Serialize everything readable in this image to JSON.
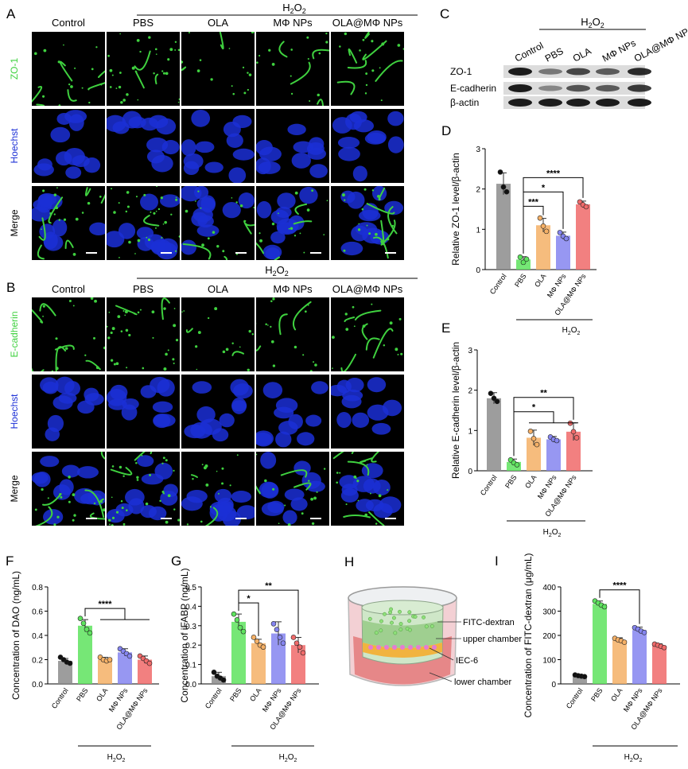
{
  "group_bracket": "H2O2",
  "colors": {
    "Control": "#8c8c8c",
    "PBS": "#5ee35e",
    "OLA": "#f5b066",
    "MΦ NPs": "#8585f0",
    "OLA@MΦ NPs": "#f06a6a",
    "membrane": "#3fd13f",
    "nuclei": "#1b2fd6"
  },
  "panels": {
    "A": {
      "letter": "A",
      "columns": [
        "Control",
        "PBS",
        "OLA",
        "MΦ NPs",
        "OLA@MΦ NPs"
      ],
      "rows": [
        "ZO-1",
        "Hoechst",
        "Merge"
      ]
    },
    "B": {
      "letter": "B",
      "columns": [
        "Control",
        "PBS",
        "OLA",
        "MΦ NPs",
        "OLA@MΦ NPs"
      ],
      "rows": [
        "E-cadherin",
        "Hoechst",
        "Merge"
      ]
    },
    "C": {
      "letter": "C",
      "lanes": [
        "Control",
        "PBS",
        "OLA",
        "MΦ NPs",
        "OLA@MΦ NPs"
      ],
      "bands": [
        "ZO-1",
        "E-cadherin",
        "β-actin"
      ]
    },
    "H": {
      "letter": "H",
      "labels": [
        "FITC-dextran",
        "upper chamber",
        "IEC-6",
        "lower chamber"
      ]
    }
  },
  "chart_data": [
    {
      "id": "D",
      "letter": "D",
      "type": "bar",
      "categories": [
        "Control",
        "PBS",
        "OLA",
        "MΦ NPs",
        "OLA@MΦ NPs"
      ],
      "values": [
        2.13,
        0.25,
        1.1,
        0.84,
        1.62
      ],
      "sd": [
        0.27,
        0.07,
        0.17,
        0.09,
        0.08
      ],
      "points": [
        [
          2.42,
          2.05,
          1.93
        ],
        [
          0.31,
          0.18,
          0.26
        ],
        [
          1.28,
          1.08,
          0.95
        ],
        [
          0.92,
          0.83,
          0.77
        ],
        [
          1.68,
          1.61,
          1.56
        ]
      ],
      "ylabel": "Relative ZO-1 level/β-actin",
      "ylim": [
        0,
        3
      ],
      "yticks": [
        0,
        1,
        2,
        3
      ],
      "group_label": "H2O2",
      "sig": [
        {
          "label": "****",
          "from": 1,
          "to": 4
        },
        {
          "label": "*",
          "from": 1,
          "to": 3
        },
        {
          "label": "***",
          "from": 1,
          "to": 2
        }
      ]
    },
    {
      "id": "E",
      "letter": "E",
      "type": "bar",
      "categories": [
        "Control",
        "PBS",
        "OLA",
        "MΦ NPs",
        "OLA@MΦ NPs"
      ],
      "values": [
        1.8,
        0.22,
        0.82,
        0.78,
        0.97
      ],
      "sd": [
        0.14,
        0.07,
        0.19,
        0.07,
        0.22
      ],
      "points": [
        [
          1.92,
          1.8,
          1.72
        ],
        [
          0.27,
          0.2,
          0.15
        ],
        [
          0.98,
          0.8,
          0.65
        ],
        [
          0.84,
          0.78,
          0.75
        ],
        [
          1.18,
          0.97,
          0.82
        ]
      ],
      "ylabel": "Relative E-cadherin level/β-actin",
      "ylim": [
        0,
        3
      ],
      "yticks": [
        0,
        1,
        2,
        3
      ],
      "group_label": "H2O2",
      "sig": [
        {
          "label": "**",
          "from": 1,
          "to": 4
        },
        {
          "label": "*",
          "from": 1,
          "to": [
            2,
            4
          ]
        }
      ]
    },
    {
      "id": "F",
      "letter": "F",
      "type": "bar",
      "categories": [
        "Control",
        "PBS",
        "OLA",
        "MΦ NPs",
        "OLA@MΦ NPs"
      ],
      "values": [
        0.19,
        0.48,
        0.2,
        0.26,
        0.2
      ],
      "sd": [
        0.02,
        0.05,
        0.02,
        0.03,
        0.03
      ],
      "points": [
        [
          0.22,
          0.2,
          0.18,
          0.17
        ],
        [
          0.54,
          0.5,
          0.45,
          0.42
        ],
        [
          0.22,
          0.2,
          0.19,
          0.2
        ],
        [
          0.29,
          0.27,
          0.25,
          0.23
        ],
        [
          0.23,
          0.21,
          0.19,
          0.17
        ]
      ],
      "ylabel": "Concentration of DAO  (ng/mL)",
      "ylim": [
        0,
        0.8
      ],
      "yticks": [
        0.0,
        0.2,
        0.4,
        0.6,
        0.8
      ],
      "group_label": "H2O2",
      "sig": [
        {
          "label": "****",
          "from": 1,
          "to": [
            2,
            4
          ]
        }
      ]
    },
    {
      "id": "G",
      "letter": "G",
      "type": "bar",
      "categories": [
        "Control",
        "PBS",
        "OLA",
        "MΦ NPs",
        "OLA@MΦ NPs"
      ],
      "values": [
        0.04,
        0.32,
        0.21,
        0.26,
        0.2
      ],
      "sd": [
        0.02,
        0.04,
        0.02,
        0.06,
        0.04
      ],
      "points": [
        [
          0.06,
          0.04,
          0.03,
          0.02
        ],
        [
          0.36,
          0.33,
          0.29,
          0.27
        ],
        [
          0.24,
          0.22,
          0.2,
          0.19
        ],
        [
          0.31,
          0.28,
          0.24,
          0.21
        ],
        [
          0.24,
          0.21,
          0.19,
          0.16
        ]
      ],
      "ylabel": "Concentration of iFABP  (ng/mL)",
      "ylim": [
        0,
        0.5
      ],
      "yticks": [
        0.0,
        0.1,
        0.2,
        0.3,
        0.4,
        0.5
      ],
      "group_label": "H2O2",
      "sig": [
        {
          "label": "**",
          "from": 1,
          "to": 4
        },
        {
          "label": "*",
          "from": 1,
          "to": 2
        }
      ]
    },
    {
      "id": "I",
      "letter": "I",
      "type": "bar",
      "categories": [
        "Control",
        "PBS",
        "OLA",
        "MΦ NPs",
        "OLA@MΦ NPs"
      ],
      "values": [
        33,
        330,
        180,
        222,
        157
      ],
      "sd": [
        4,
        12,
        10,
        12,
        8
      ],
      "points": [
        [
          37,
          34,
          32,
          30
        ],
        [
          342,
          334,
          325,
          318
        ],
        [
          188,
          182,
          178,
          172
        ],
        [
          232,
          226,
          218,
          212
        ],
        [
          164,
          160,
          155,
          150
        ]
      ],
      "ylabel": "Concentration of FITC-dextran  (μg/mL)",
      "ylim": [
        0,
        400
      ],
      "yticks": [
        0,
        100,
        200,
        300,
        400
      ],
      "group_label": "H2O2",
      "sig": [
        {
          "label": "****",
          "from": 1,
          "to": 3
        }
      ]
    }
  ]
}
